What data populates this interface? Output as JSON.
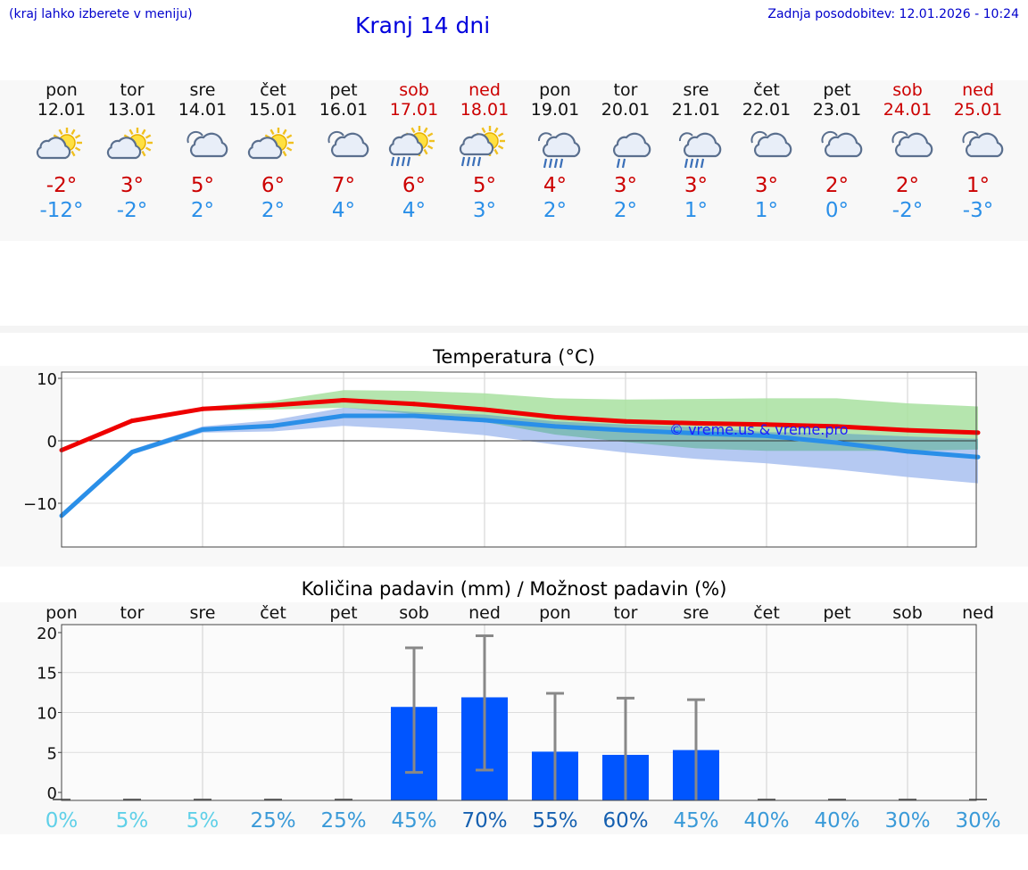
{
  "header": {
    "hint": "(kraj lahko izberete v meniju)",
    "title": "Kranj 14 dni",
    "updated": "Zadnja posodobitev: 12.01.2026 - 10:24"
  },
  "days": [
    {
      "name": "pon",
      "date": "12.01",
      "weekend": false,
      "icon": "sun-cloud-icon",
      "tmax": "-2°",
      "tmin": "-12°"
    },
    {
      "name": "tor",
      "date": "13.01",
      "weekend": false,
      "icon": "sun-cloud-icon",
      "tmax": "3°",
      "tmin": "-2°"
    },
    {
      "name": "sre",
      "date": "14.01",
      "weekend": false,
      "icon": "cloud-icon",
      "tmax": "5°",
      "tmin": "2°"
    },
    {
      "name": "čet",
      "date": "15.01",
      "weekend": false,
      "icon": "sun-cloud-icon",
      "tmax": "6°",
      "tmin": "2°"
    },
    {
      "name": "pet",
      "date": "16.01",
      "weekend": false,
      "icon": "cloud-icon",
      "tmax": "7°",
      "tmin": "4°"
    },
    {
      "name": "sob",
      "date": "17.01",
      "weekend": true,
      "icon": "sun-cloud-rain-icon",
      "tmax": "6°",
      "tmin": "4°"
    },
    {
      "name": "ned",
      "date": "18.01",
      "weekend": true,
      "icon": "sun-cloud-rain-icon",
      "tmax": "5°",
      "tmin": "3°"
    },
    {
      "name": "pon",
      "date": "19.01",
      "weekend": false,
      "icon": "cloud-rain-icon",
      "tmax": "4°",
      "tmin": "2°"
    },
    {
      "name": "tor",
      "date": "20.01",
      "weekend": false,
      "icon": "cloud-light-rain-icon",
      "tmax": "3°",
      "tmin": "2°"
    },
    {
      "name": "sre",
      "date": "21.01",
      "weekend": false,
      "icon": "cloud-rain-icon",
      "tmax": "3°",
      "tmin": "1°"
    },
    {
      "name": "čet",
      "date": "22.01",
      "weekend": false,
      "icon": "cloud-icon",
      "tmax": "3°",
      "tmin": "1°"
    },
    {
      "name": "pet",
      "date": "23.01",
      "weekend": false,
      "icon": "cloud-icon",
      "tmax": "2°",
      "tmin": "0°"
    },
    {
      "name": "sob",
      "date": "24.01",
      "weekend": true,
      "icon": "cloud-icon",
      "tmax": "2°",
      "tmin": "-2°"
    },
    {
      "name": "ned",
      "date": "25.01",
      "weekend": true,
      "icon": "cloud-icon",
      "tmax": "1°",
      "tmin": "-3°"
    }
  ],
  "colors": {
    "max": "#ee0000",
    "min": "#2a8fe8",
    "bar": "#0055ff",
    "err": "#888888",
    "green": "#a8e0a0",
    "blue": "#a8c0f0"
  },
  "chart_data": [
    {
      "type": "line",
      "title": "Temperatura (°C)",
      "ylim": [
        -17,
        11
      ],
      "yticks": [
        10,
        0,
        -10
      ],
      "watermark": "© vreme.us & vreme.pro",
      "x": [
        0,
        1,
        2,
        3,
        4,
        5,
        6,
        7,
        8,
        9,
        10,
        11,
        12,
        13
      ],
      "series": [
        {
          "name": "max",
          "values": [
            -1.5,
            3.2,
            5.1,
            5.7,
            6.5,
            5.9,
            5.0,
            3.8,
            3.1,
            2.8,
            2.6,
            2.3,
            1.7,
            1.3
          ]
        },
        {
          "name": "min",
          "values": [
            -12.0,
            -1.8,
            1.8,
            2.4,
            4.0,
            4.0,
            3.3,
            2.3,
            1.7,
            1.2,
            0.8,
            -0.3,
            -1.7,
            -2.6
          ]
        },
        {
          "name": "max_range_upper",
          "values": [
            -1.2,
            3.4,
            5.4,
            6.4,
            8.1,
            8.0,
            7.6,
            6.8,
            6.6,
            6.7,
            6.8,
            6.8,
            6.0,
            5.5
          ]
        },
        {
          "name": "max_range_lower",
          "values": [
            -1.8,
            3.0,
            4.8,
            5.0,
            5.3,
            4.3,
            3.0,
            1.0,
            -0.2,
            -1.2,
            -1.6,
            -1.6,
            -1.6,
            -1.4
          ]
        },
        {
          "name": "min_range_upper",
          "values": [
            -11.7,
            -1.4,
            2.3,
            3.3,
            5.3,
            4.6,
            4.2,
            3.1,
            2.6,
            2.2,
            1.4,
            1.2,
            0.7,
            0.3
          ]
        },
        {
          "name": "min_range_lower",
          "values": [
            -12.3,
            -2.2,
            1.3,
            1.5,
            2.4,
            1.8,
            0.9,
            -0.6,
            -1.9,
            -2.9,
            -3.6,
            -4.6,
            -5.8,
            -6.8
          ]
        }
      ]
    },
    {
      "type": "bar",
      "title": "Količina padavin (mm) / Možnost padavin (%)",
      "ylim": [
        -1,
        21
      ],
      "yticks": [
        20,
        15,
        10,
        5,
        0
      ],
      "categories": [
        "pon",
        "tor",
        "sre",
        "čet",
        "pet",
        "sob",
        "ned",
        "pon",
        "tor",
        "sre",
        "čet",
        "pet",
        "sob",
        "ned"
      ],
      "values": [
        0,
        0,
        0,
        0,
        0,
        10.7,
        11.9,
        5.1,
        4.7,
        5.3,
        0,
        0,
        0,
        0
      ],
      "err_low": [
        0,
        0,
        0,
        0,
        0,
        2.5,
        2.8,
        0,
        0,
        0,
        0,
        0,
        0,
        0
      ],
      "err_high": [
        0,
        0,
        0,
        0,
        0,
        18.1,
        19.6,
        12.4,
        11.8,
        11.6,
        0,
        0,
        0,
        0
      ],
      "probability": [
        "0%",
        "5%",
        "5%",
        "25%",
        "25%",
        "45%",
        "70%",
        "55%",
        "60%",
        "45%",
        "40%",
        "40%",
        "30%",
        "30%"
      ],
      "probability_colors": [
        "#5fd0e8",
        "#5fd0e8",
        "#5fd0e8",
        "#3a9ad8",
        "#3a9ad8",
        "#3a9ad8",
        "#1560b0",
        "#1560b0",
        "#1560b0",
        "#3a9ad8",
        "#3a9ad8",
        "#3a9ad8",
        "#3a9ad8",
        "#3a9ad8"
      ]
    }
  ]
}
